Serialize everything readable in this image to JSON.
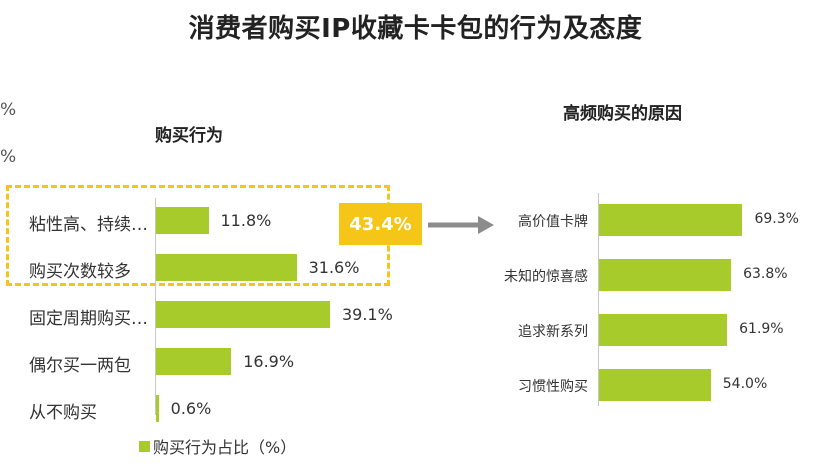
{
  "main_title": "消费者购买IP收藏卡卡包的行为及态度",
  "edge_marks": [
    "%",
    "%"
  ],
  "colors": {
    "bar": "#a6cb2a",
    "highlight": "#f5c518",
    "axis": "#c7c7c7"
  },
  "callout_value": "43.4%",
  "chart_data": [
    {
      "type": "bar",
      "orientation": "horizontal",
      "title": "购买行为",
      "categories": [
        "粘性高、持续…",
        "购买次数较多",
        "固定周期购买…",
        "偶尔买一两包",
        "从不购买"
      ],
      "values": [
        11.8,
        31.6,
        39.1,
        16.9,
        0.6
      ],
      "value_labels": [
        "11.8%",
        "31.6%",
        "39.1%",
        "16.9%",
        "0.6%"
      ],
      "legend": "购买行为占比（%）",
      "legend_position": "bottom-left",
      "xlim": [
        0,
        40
      ]
    },
    {
      "type": "bar",
      "orientation": "horizontal",
      "title": "高频购买的原因",
      "categories": [
        "高价值卡牌",
        "未知的惊喜感",
        "追求新系列",
        "习惯性购买"
      ],
      "values": [
        69.3,
        63.8,
        61.9,
        54.0
      ],
      "value_labels": [
        "69.3%",
        "63.8%",
        "61.9%",
        "54.0%"
      ],
      "xlim": [
        0,
        100
      ]
    }
  ]
}
